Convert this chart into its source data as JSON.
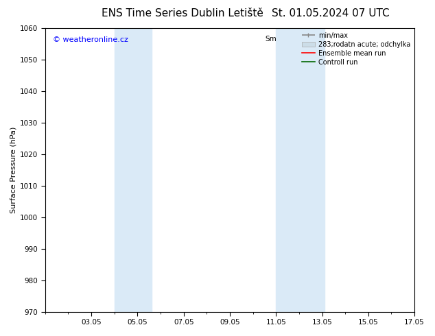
{
  "title_left": "ENS Time Series Dublin Letiště",
  "title_right": "St. 01.05.2024 07 UTC",
  "ylabel": "Surface Pressure (hPa)",
  "ylim": [
    970,
    1060
  ],
  "yticks": [
    970,
    980,
    990,
    1000,
    1010,
    1020,
    1030,
    1040,
    1050,
    1060
  ],
  "xlim": [
    1.0,
    17.0
  ],
  "xtick_labels": [
    "03.05",
    "05.05",
    "07.05",
    "09.05",
    "11.05",
    "13.05",
    "15.05",
    "17.05"
  ],
  "xtick_positions": [
    3,
    5,
    7,
    9,
    11,
    13,
    15,
    17
  ],
  "shaded_bands": [
    {
      "x_start": 4.0,
      "x_end": 5.6,
      "color": "#daeaf7"
    },
    {
      "x_start": 11.0,
      "x_end": 13.1,
      "color": "#daeaf7"
    }
  ],
  "watermark_text": "© weatheronline.cz",
  "watermark_color": "#0000ff",
  "legend_prefix": "Sm",
  "background_color": "#ffffff",
  "spine_color": "#000000",
  "title_fontsize": 11,
  "axis_fontsize": 8,
  "tick_fontsize": 7.5,
  "legend_fontsize": 7
}
